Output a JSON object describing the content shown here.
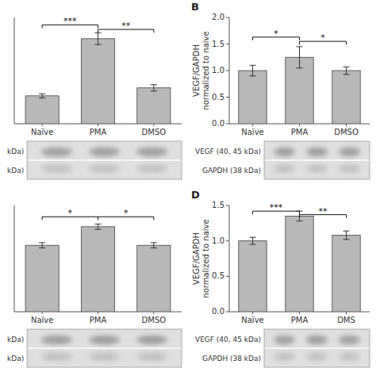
{
  "chart_data": [
    {
      "type": "bar",
      "categories": [
        "Naïve",
        "PMA",
        "DMSO"
      ],
      "values": [
        1.05,
        3.2,
        1.35
      ],
      "errors": [
        0.08,
        0.22,
        0.12
      ],
      "color": "#b8b8b8",
      "ylim": [
        0,
        4.0
      ],
      "yticks": [],
      "tick_labels": "x",
      "annotations": [
        {
          "categories": [
            "Naïve",
            "PMA"
          ],
          "y": 3.72,
          "text": "***"
        },
        {
          "categories": [
            "PMA",
            "DMSO"
          ],
          "y": 3.55,
          "text": "**"
        }
      ],
      "blot_labels": [
        " kDa)",
        " kDa)"
      ]
    },
    {
      "type": "bar",
      "title": "B",
      "categories": [
        "Naïve",
        "PMA",
        "DMSO"
      ],
      "values": [
        1.0,
        1.25,
        1.0
      ],
      "errors": [
        0.1,
        0.2,
        0.07
      ],
      "color": "#b8b8b8",
      "ylim": [
        0.0,
        2.0
      ],
      "yticks": [
        {
          "value": 0.0,
          "label": "0.0"
        },
        0.5,
        {
          "value": 1.0,
          "label": "1.0"
        },
        1.5,
        {
          "value": 2.0,
          "label": "2.0"
        }
      ],
      "y_label": "VEGF/GAPDH\nnormalized to naive",
      "annotations": [
        {
          "categories": [
            "Naïve",
            "PMA"
          ],
          "y": 1.63,
          "text": "*"
        },
        {
          "categories": [
            "PMA",
            "DMSO"
          ],
          "y": 1.55,
          "text": "*"
        }
      ],
      "blot_labels": [
        "VEGF (40, 45 kDa)",
        "GAPDH (38 kDa)"
      ]
    },
    {
      "type": "bar",
      "categories": [
        "Naïve",
        "PMA",
        "DMSO"
      ],
      "values": [
        1.0,
        1.28,
        1.0
      ],
      "errors": [
        0.04,
        0.04,
        0.04
      ],
      "color": "#b8b8b8",
      "ylim": [
        0,
        1.6
      ],
      "yticks": [],
      "tick_labels": "x",
      "annotations": [
        {
          "categories": [
            "Naïve",
            "PMA"
          ],
          "y": 1.43,
          "text": "*"
        },
        {
          "categories": [
            "PMA",
            "DMSO"
          ],
          "y": 1.43,
          "text": "*"
        }
      ],
      "blot_labels": [
        " kDa)",
        " kDa)"
      ]
    },
    {
      "type": "bar",
      "title": "D",
      "categories": [
        "Naïve",
        "PMA",
        "DMS"
      ],
      "values": [
        1.0,
        1.35,
        1.08
      ],
      "errors": [
        0.05,
        0.07,
        0.06
      ],
      "color": "#b8b8b8",
      "ylim": [
        0.0,
        1.5
      ],
      "yticks": [
        {
          "value": 0.0,
          "label": "0.0"
        },
        0.5,
        {
          "value": 1.0,
          "label": "1.0"
        },
        1.5
      ],
      "y_label": "VEGF/GAPDH\nnormalized to naive",
      "annotations": [
        {
          "categories": [
            "Naïve",
            "PMA"
          ],
          "y": 1.42,
          "text": "***"
        },
        {
          "categories": [
            "PMA",
            "DMS"
          ],
          "y": 1.37,
          "text": "**"
        }
      ],
      "blot_labels": [
        "VEGF (40, 45 kDa)",
        "GAPDH (38 kDa)"
      ]
    }
  ]
}
